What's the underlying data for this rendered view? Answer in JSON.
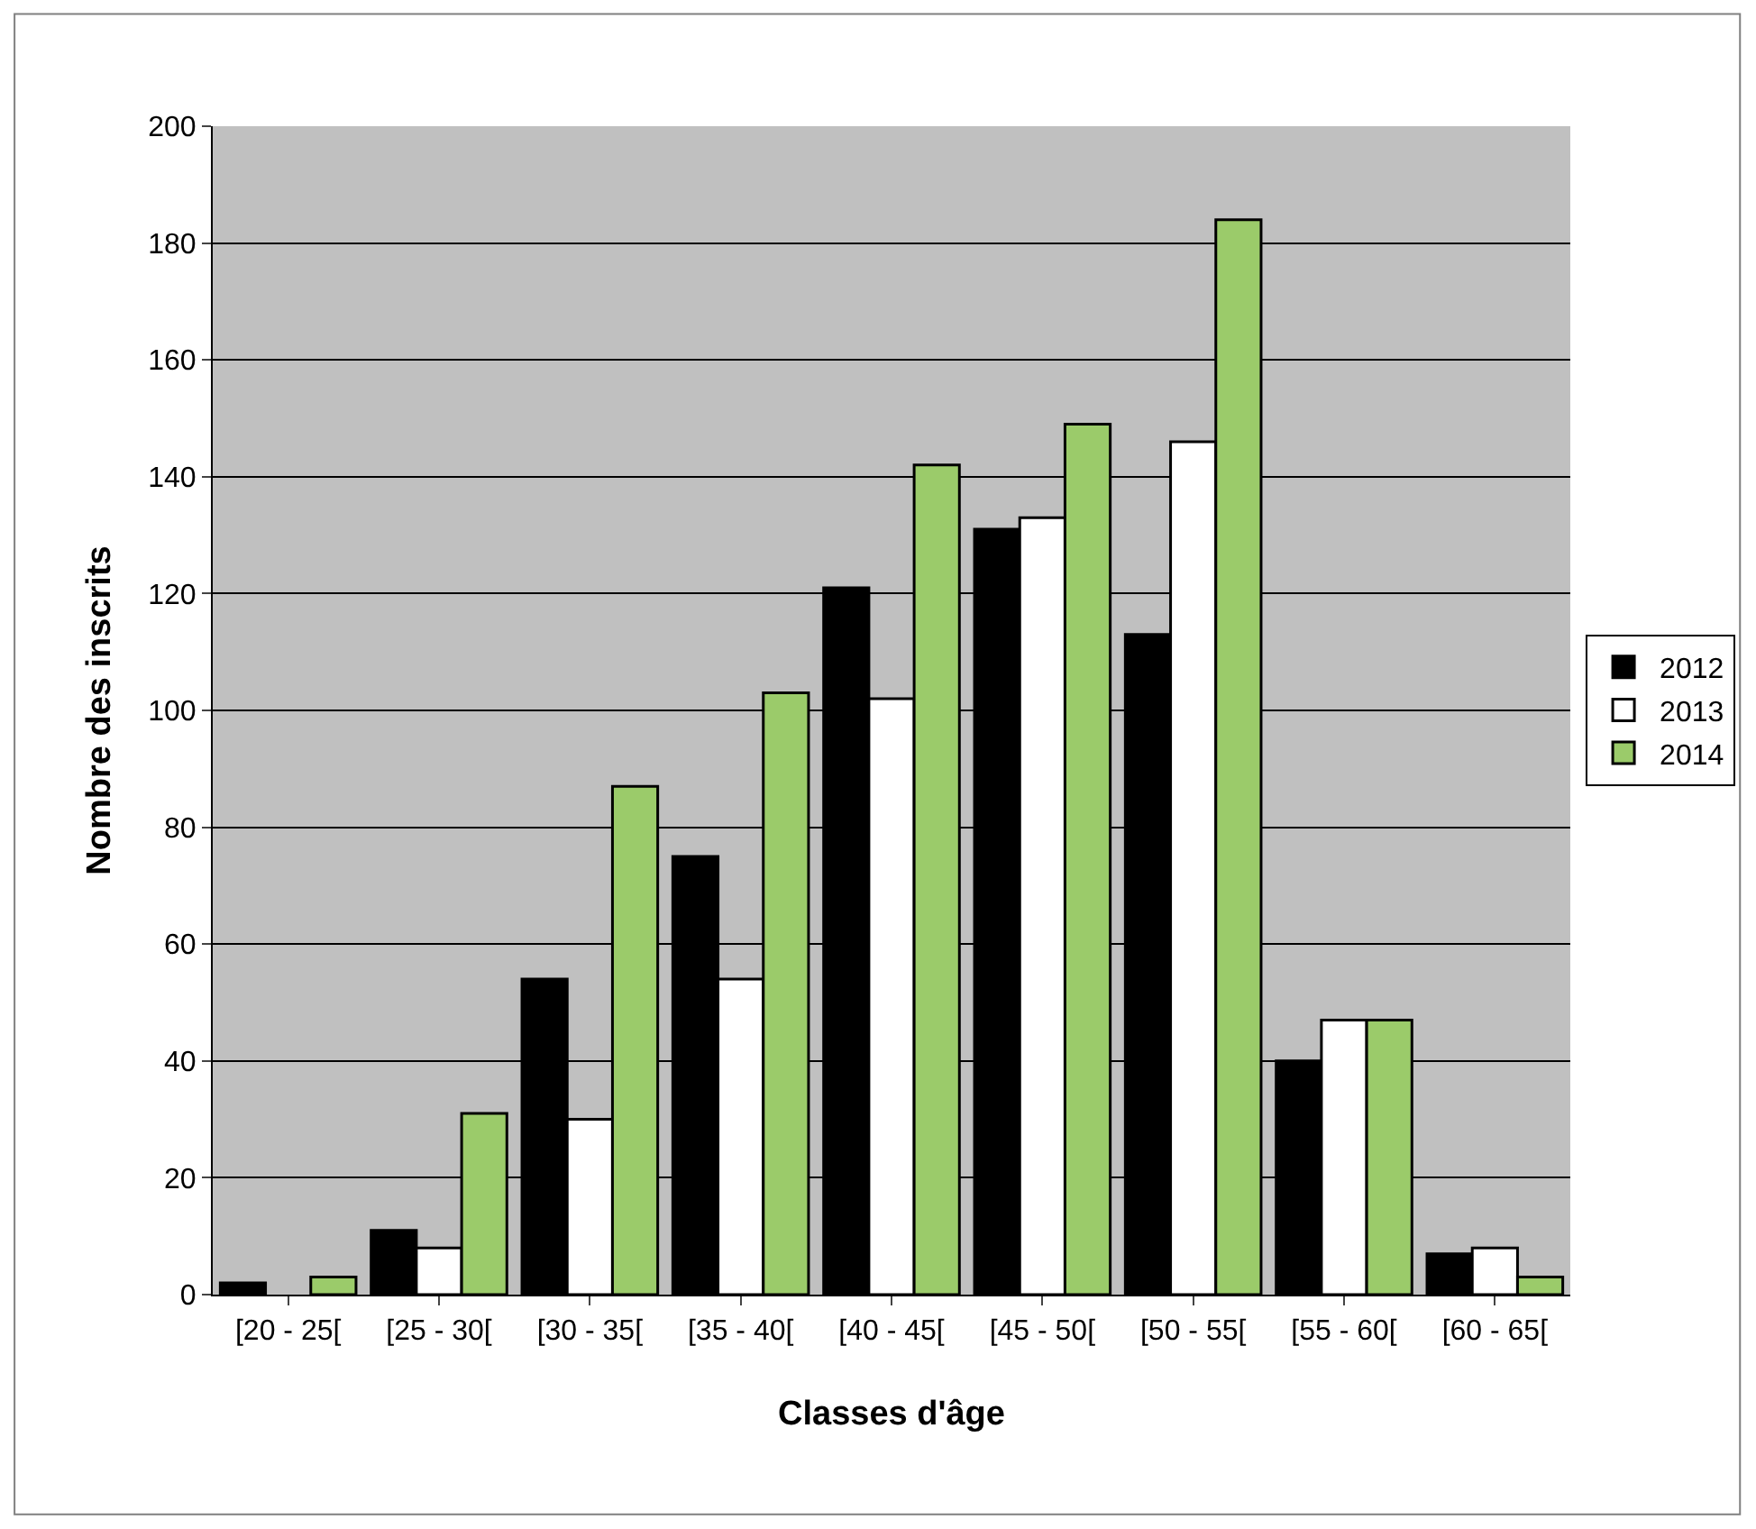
{
  "chart_data": {
    "type": "bar",
    "xlabel": "Classes d'âge",
    "ylabel": "Nombre des inscrits",
    "categories": [
      "[20 - 25[",
      "[25 - 30[",
      "[30 - 35[",
      "[35 - 40[",
      "[40 - 45[",
      "[45 - 50[",
      "[50 - 55[",
      "[55 - 60[",
      "[60 - 65["
    ],
    "series": [
      {
        "name": "2012",
        "color": "#000000",
        "values": [
          2,
          11,
          54,
          75,
          121,
          131,
          113,
          40,
          7
        ]
      },
      {
        "name": "2013",
        "color": "#ffffff",
        "values": [
          null,
          8,
          30,
          54,
          102,
          133,
          146,
          47,
          8
        ]
      },
      {
        "name": "2014",
        "color": "#9bcb6a",
        "values": [
          3,
          31,
          87,
          103,
          142,
          149,
          184,
          47,
          3
        ]
      }
    ],
    "ylim": [
      0,
      200
    ],
    "yticks": [
      0,
      20,
      40,
      60,
      80,
      100,
      120,
      140,
      160,
      180,
      200
    ],
    "grid": "y",
    "legend": "right"
  }
}
